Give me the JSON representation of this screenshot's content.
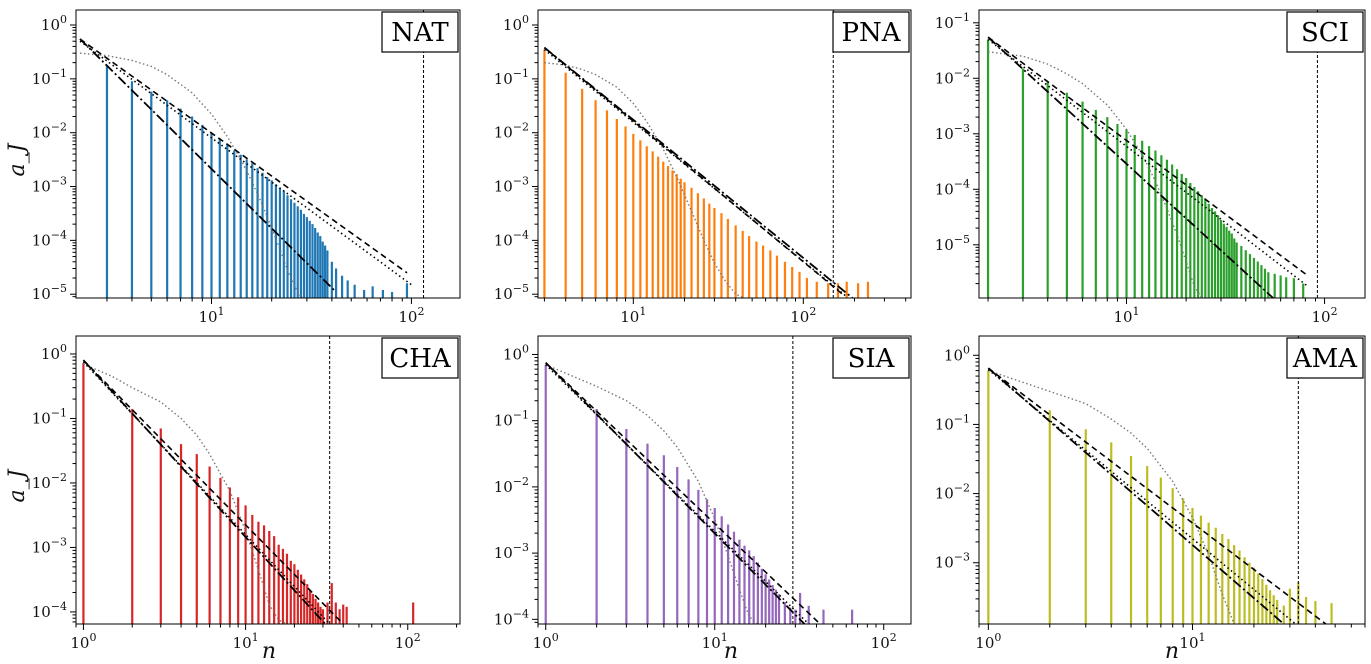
{
  "figure": {
    "xlabel_text": "n",
    "ylabel_text": "a_J"
  },
  "chart_data": [
    {
      "type": "bar",
      "label": "NAT",
      "color": "#1f77b4",
      "xlim": [
        2.1,
        175
      ],
      "ylim": [
        8.5e-06,
        1.9
      ],
      "x_ticks": [
        10,
        100
      ],
      "x_tick_labels": [
        "10^1",
        "10^2"
      ],
      "y_ticks": [
        1e-05,
        0.0001,
        0.001,
        0.01,
        0.1,
        1
      ],
      "y_tick_labels": [
        "10^-5",
        "10^-4",
        "10^-3",
        "10^-2",
        "10^-1",
        "10^0"
      ],
      "vline_x": 115,
      "bars": {
        "x": [
          2,
          3,
          4,
          5,
          6,
          7,
          8,
          9,
          10,
          11,
          12,
          13,
          14,
          15,
          16,
          17,
          18,
          19,
          20,
          21,
          22,
          23,
          24,
          25,
          26,
          27,
          28,
          29,
          30,
          31,
          32,
          33,
          34,
          35,
          36,
          37,
          38,
          40,
          42,
          45,
          48,
          52,
          58,
          64,
          72,
          80,
          95
        ],
        "y": [
          0.5,
          0.17,
          0.09,
          0.058,
          0.04,
          0.028,
          0.02,
          0.014,
          0.01,
          0.0079,
          0.0061,
          0.0047,
          0.0039,
          0.0032,
          0.0027,
          0.0022,
          0.0018,
          0.0015,
          0.0013,
          0.0011,
          0.00093,
          0.00082,
          0.00069,
          0.00058,
          0.0005,
          0.00043,
          0.00037,
          0.00031,
          0.00027,
          0.00023,
          0.0002,
          0.00017,
          0.00014,
          0.00012,
          9.5e-05,
          8e-05,
          6.5e-05,
          4e-05,
          3e-05,
          2.2e-05,
          1.8e-05,
          1.5e-05,
          1.2e-05,
          1.4e-05,
          1.2e-05,
          1.1e-05,
          1.6e-05
        ]
      },
      "dashed_line": {
        "x": [
          2.2,
          95
        ],
        "y": [
          0.55,
          2.5e-05
        ]
      },
      "dashdot_line": {
        "x": [
          2.2,
          42
        ],
        "y": [
          0.55,
          1.1e-05
        ]
      },
      "dotted_line": {
        "x": [
          2.2,
          100
        ],
        "y": [
          0.5,
          1.5e-05
        ]
      },
      "lognormal_curve": {
        "x": [
          2.2,
          3,
          4,
          5,
          6,
          8,
          10,
          12,
          14,
          16,
          18,
          20,
          22,
          24,
          26,
          28,
          30
        ],
        "y": [
          0.3,
          0.27,
          0.22,
          0.17,
          0.12,
          0.055,
          0.022,
          0.0085,
          0.0032,
          0.0012,
          0.00045,
          0.00017,
          6.8e-05,
          2.8e-05,
          1.4e-05,
          9e-06,
          8.5e-06
        ]
      }
    },
    {
      "type": "bar",
      "label": "PNA",
      "color": "#ff7f0e",
      "xlim": [
        2.75,
        430
      ],
      "ylim": [
        8.5e-06,
        1.9
      ],
      "x_ticks": [
        10,
        100
      ],
      "x_tick_labels": [
        "10^1",
        "10^2"
      ],
      "y_ticks": [
        1e-05,
        0.0001,
        0.001,
        0.01,
        0.1,
        1
      ],
      "y_tick_labels": [
        "10^-5",
        "10^-4",
        "10^-3",
        "10^-2",
        "10^-1",
        "10^0"
      ],
      "vline_x": 150,
      "bars": {
        "x": [
          3,
          4,
          5,
          6,
          7,
          8,
          9,
          10,
          11,
          12,
          13,
          14,
          15,
          16,
          17,
          18,
          19,
          20,
          22,
          24,
          26,
          28,
          30,
          33,
          36,
          40,
          44,
          48,
          53,
          58,
          64,
          70,
          78,
          86,
          95,
          105,
          120,
          140,
          160,
          180,
          210,
          240
        ],
        "y": [
          0.35,
          0.13,
          0.065,
          0.04,
          0.026,
          0.018,
          0.013,
          0.0095,
          0.0072,
          0.0056,
          0.0045,
          0.0036,
          0.0029,
          0.0024,
          0.002,
          0.0017,
          0.0014,
          0.0012,
          0.00095,
          0.00075,
          0.0006,
          0.00048,
          0.0004,
          0.00032,
          0.00025,
          0.00019,
          0.00015,
          0.00012,
          9.5e-05,
          8e-05,
          6.5e-05,
          5.2e-05,
          4e-05,
          3.2e-05,
          2.6e-05,
          2e-05,
          1.7e-05,
          1.6e-05,
          1.6e-05,
          1.7e-05,
          1.6e-05,
          1.7e-05
        ]
      },
      "dashed_line": {
        "x": [
          3,
          170
        ],
        "y": [
          0.38,
          1e-05
        ]
      },
      "dashdot_line": {
        "x": [
          3,
          195
        ],
        "y": [
          0.38,
          8.5e-06
        ]
      },
      "dotted_line": {
        "x": [
          3,
          180
        ],
        "y": [
          0.35,
          9e-06
        ]
      },
      "lognormal_curve": {
        "x": [
          3,
          4,
          5,
          6,
          8,
          10,
          12,
          15,
          18,
          22,
          26,
          30,
          35,
          40,
          45
        ],
        "y": [
          0.2,
          0.18,
          0.15,
          0.12,
          0.07,
          0.035,
          0.016,
          0.005,
          0.0015,
          0.00035,
          0.0001,
          3.8e-05,
          1.7e-05,
          1e-05,
          8.5e-06
        ]
      }
    },
    {
      "type": "bar",
      "label": "SCI",
      "color": "#2ca02c",
      "xlim": [
        1.8,
        160
      ],
      "ylim": [
        1.1e-06,
        0.17
      ],
      "x_ticks": [
        10,
        100
      ],
      "x_tick_labels": [
        "10^1",
        "10^2"
      ],
      "y_ticks": [
        1e-05,
        0.0001,
        0.001,
        0.01,
        0.1
      ],
      "y_tick_labels": [
        "10^-5",
        "10^-4",
        "10^-3",
        "10^-2",
        "10^-1"
      ],
      "vline_x": 92,
      "bars": {
        "x": [
          2,
          3,
          4,
          5,
          6,
          7,
          8,
          9,
          10,
          11,
          12,
          13,
          14,
          15,
          16,
          17,
          18,
          19,
          20,
          21,
          22,
          23,
          24,
          25,
          26,
          27,
          28,
          29,
          30,
          31,
          32,
          33,
          34,
          35,
          36,
          38,
          40,
          42,
          44,
          46,
          48,
          50,
          52,
          56,
          60,
          64,
          70,
          78
        ],
        "y": [
          0.05,
          0.015,
          0.0085,
          0.0055,
          0.0038,
          0.0027,
          0.002,
          0.0015,
          0.0012,
          0.00095,
          0.00075,
          0.0006,
          0.0005,
          0.00041,
          0.00034,
          0.00028,
          0.00023,
          0.00019,
          0.00016,
          0.00013,
          0.00011,
          9.2e-05,
          7.8e-05,
          6.5e-05,
          5.5e-05,
          4.6e-05,
          4e-05,
          3.4e-05,
          2.8e-05,
          2.4e-05,
          2.1e-05,
          1.8e-05,
          1.6e-05,
          1.3e-05,
          1.1e-05,
          9.5e-06,
          8e-06,
          6.8e-06,
          5.8e-06,
          5e-06,
          4.3e-06,
          3.7e-06,
          3.2e-06,
          3e-06,
          2.8e-06,
          2.6e-06,
          2.5e-06,
          2e-06
        ]
      },
      "dashed_line": {
        "x": [
          2,
          82
        ],
        "y": [
          0.055,
          2.8e-06
        ]
      },
      "dashdot_line": {
        "x": [
          2,
          55
        ],
        "y": [
          0.055,
          1.1e-06
        ]
      },
      "dotted_line": {
        "x": [
          2,
          82
        ],
        "y": [
          0.05,
          1.8e-06
        ]
      },
      "lognormal_curve": {
        "x": [
          2,
          3,
          4,
          5,
          6,
          8,
          10,
          12,
          14,
          16,
          18,
          20,
          22,
          24
        ],
        "y": [
          0.03,
          0.025,
          0.018,
          0.012,
          0.008,
          0.0033,
          0.0012,
          0.00042,
          0.00014,
          4.5e-05,
          1.5e-05,
          5e-06,
          1.8e-06,
          1.1e-06
        ]
      }
    },
    {
      "type": "bar",
      "label": "CHA",
      "color": "#d62728",
      "xlim": [
        0.9,
        210
      ],
      "ylim": [
        6.5e-05,
        1.9
      ],
      "x_ticks": [
        1,
        10,
        100
      ],
      "x_tick_labels": [
        "10^0",
        "10^1",
        "10^2"
      ],
      "y_ticks": [
        0.0001,
        0.001,
        0.01,
        0.1,
        1
      ],
      "y_tick_labels": [
        "10^-4",
        "10^-3",
        "10^-2",
        "10^-1",
        "10^0"
      ],
      "vline_x": 33,
      "bars": {
        "x": [
          1,
          2,
          3,
          4,
          5,
          6,
          7,
          8,
          9,
          10,
          11,
          12,
          13,
          14,
          15,
          16,
          17,
          18,
          19,
          20,
          21,
          22,
          23,
          24,
          25,
          26,
          27,
          28,
          29,
          30,
          32,
          34,
          36,
          38,
          40,
          42,
          108
        ],
        "y": [
          0.72,
          0.14,
          0.07,
          0.04,
          0.028,
          0.018,
          0.012,
          0.0085,
          0.006,
          0.0045,
          0.0032,
          0.0025,
          0.0022,
          0.0018,
          0.0015,
          0.0011,
          0.00095,
          0.0008,
          0.00062,
          0.00055,
          0.00045,
          0.00038,
          0.00032,
          0.00027,
          0.00022,
          0.00019,
          0.00016,
          0.00014,
          0.00012,
          0.00011,
          0.00014,
          0.00028,
          0.00014,
          0.00011,
          0.00013,
          0.00012,
          0.00014
        ]
      },
      "dashed_line": {
        "x": [
          1,
          40
        ],
        "y": [
          0.8,
          6.5e-05
        ]
      },
      "dashdot_line": {
        "x": [
          1,
          31
        ],
        "y": [
          0.8,
          6.5e-05
        ]
      },
      "dotted_line": {
        "x": [
          1,
          33
        ],
        "y": [
          0.75,
          6.5e-05
        ]
      },
      "lognormal_curve": {
        "x": [
          1,
          1.5,
          2,
          3,
          4,
          5,
          6,
          8,
          10,
          12,
          14,
          16,
          18
        ],
        "y": [
          0.7,
          0.45,
          0.3,
          0.18,
          0.1,
          0.055,
          0.028,
          0.0075,
          0.0018,
          0.00045,
          0.00013,
          7.5e-05,
          6.5e-05
        ]
      }
    },
    {
      "type": "bar",
      "label": "SIA",
      "color": "#9467bd",
      "xlim": [
        0.9,
        145
      ],
      "ylim": [
        8.5e-05,
        1.9
      ],
      "x_ticks": [
        1,
        10,
        100
      ],
      "x_tick_labels": [
        "10^0",
        "10^1",
        "10^2"
      ],
      "y_ticks": [
        0.0001,
        0.001,
        0.01,
        0.1,
        1
      ],
      "y_tick_labels": [
        "10^-4",
        "10^-3",
        "10^-2",
        "10^-1",
        "10^0"
      ],
      "vline_x": 29,
      "bars": {
        "x": [
          1,
          2,
          3,
          4,
          5,
          6,
          7,
          8,
          9,
          10,
          11,
          12,
          13,
          14,
          15,
          16,
          17,
          18,
          19,
          20,
          21,
          22,
          23,
          24,
          26,
          28,
          30,
          32,
          36,
          44,
          65
        ],
        "y": [
          0.7,
          0.15,
          0.075,
          0.045,
          0.03,
          0.02,
          0.013,
          0.009,
          0.0065,
          0.0048,
          0.0036,
          0.0027,
          0.0021,
          0.0016,
          0.0013,
          0.0011,
          0.0009,
          0.00072,
          0.00058,
          0.00048,
          0.0004,
          0.00033,
          0.00028,
          0.00024,
          0.00018,
          0.00015,
          0.00014,
          0.00025,
          0.00016,
          0.00014,
          0.00014
        ]
      },
      "dashed_line": {
        "x": [
          1,
          42
        ],
        "y": [
          0.75,
          8.5e-05
        ]
      },
      "dashdot_line": {
        "x": [
          1,
          34
        ],
        "y": [
          0.75,
          8.5e-05
        ]
      },
      "dotted_line": {
        "x": [
          1,
          36
        ],
        "y": [
          0.7,
          8.5e-05
        ]
      },
      "lognormal_curve": {
        "x": [
          1,
          1.5,
          2,
          3,
          4,
          5,
          6,
          8,
          10,
          12,
          14,
          16,
          18
        ],
        "y": [
          0.7,
          0.45,
          0.33,
          0.2,
          0.12,
          0.07,
          0.04,
          0.012,
          0.0033,
          0.0009,
          0.00028,
          0.00011,
          8.5e-05
        ]
      }
    },
    {
      "type": "bar",
      "label": "AMA",
      "color": "#bcbd22",
      "xlim": [
        0.9,
        70
      ],
      "ylim": [
        0.00013,
        1.9
      ],
      "x_ticks": [
        1,
        10
      ],
      "x_tick_labels": [
        "10^0",
        "10^1"
      ],
      "y_ticks": [
        0.001,
        0.01,
        0.1,
        1
      ],
      "y_tick_labels": [
        "10^-3",
        "10^-2",
        "10^-1",
        "10^0"
      ],
      "vline_x": 33,
      "bars": {
        "x": [
          1,
          2,
          3,
          4,
          5,
          6,
          7,
          8,
          9,
          10,
          11,
          12,
          13,
          14,
          15,
          16,
          17,
          18,
          19,
          20,
          21,
          22,
          23,
          24,
          25,
          26,
          28,
          30,
          33,
          36,
          40,
          48
        ],
        "y": [
          0.6,
          0.16,
          0.085,
          0.055,
          0.035,
          0.025,
          0.017,
          0.012,
          0.0085,
          0.0062,
          0.0048,
          0.0038,
          0.0032,
          0.0026,
          0.0022,
          0.0018,
          0.0015,
          0.0012,
          0.001,
          0.00085,
          0.0007,
          0.00058,
          0.00048,
          0.0004,
          0.00034,
          0.00029,
          0.00024,
          0.00042,
          0.00052,
          0.00032,
          0.00028,
          0.00026
        ]
      },
      "dashed_line": {
        "x": [
          1,
          45
        ],
        "y": [
          0.65,
          0.00013
        ]
      },
      "dashdot_line": {
        "x": [
          1,
          28
        ],
        "y": [
          0.65,
          0.00013
        ]
      },
      "dotted_line": {
        "x": [
          1,
          32
        ],
        "y": [
          0.62,
          0.00013
        ]
      },
      "lognormal_curve": {
        "x": [
          1,
          1.5,
          2,
          3,
          4,
          5,
          6,
          8,
          10,
          12,
          14,
          16
        ],
        "y": [
          0.6,
          0.4,
          0.3,
          0.2,
          0.12,
          0.075,
          0.045,
          0.015,
          0.0045,
          0.0013,
          0.00035,
          0.00013
        ]
      }
    }
  ]
}
